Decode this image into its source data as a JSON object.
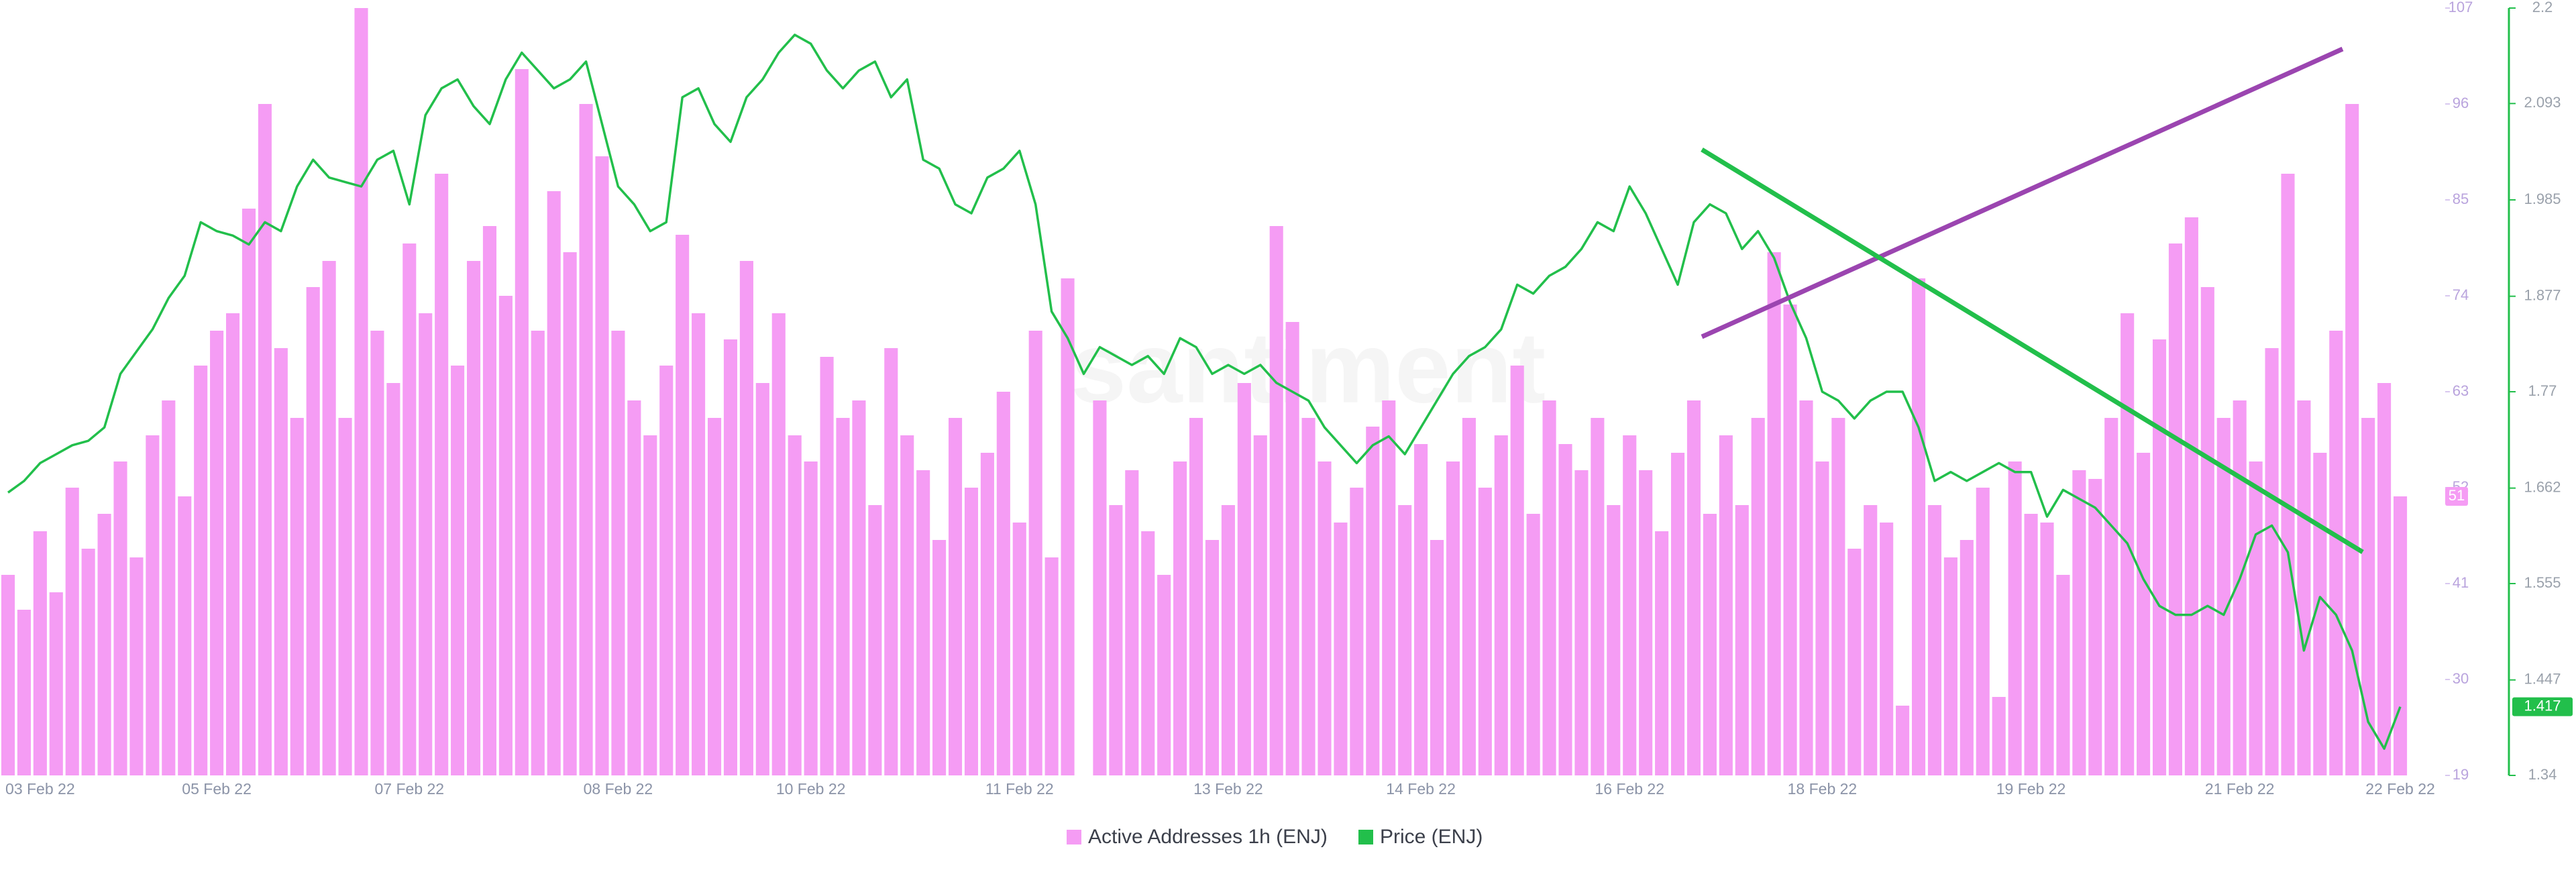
{
  "chart_data": {
    "type": "bar",
    "watermark": "santiment",
    "categories": [
      null,
      null,
      "03 Feb 22",
      null,
      null,
      null,
      null,
      null,
      null,
      null,
      null,
      null,
      null,
      "05 Feb 22",
      null,
      null,
      null,
      null,
      null,
      null,
      null,
      null,
      null,
      null,
      null,
      "07 Feb 22",
      null,
      null,
      null,
      null,
      null,
      null,
      null,
      null,
      null,
      null,
      null,
      null,
      "08 Feb 22",
      null,
      null,
      null,
      null,
      null,
      null,
      null,
      null,
      null,
      null,
      null,
      "10 Feb 22",
      null,
      null,
      null,
      null,
      null,
      null,
      null,
      null,
      null,
      null,
      null,
      null,
      "11 Feb 22",
      null,
      null,
      null,
      null,
      null,
      null,
      null,
      null,
      null,
      null,
      null,
      null,
      "13 Feb 22",
      null,
      null,
      null,
      null,
      null,
      null,
      null,
      null,
      null,
      null,
      null,
      "14 Feb 22",
      null,
      null,
      null,
      null,
      null,
      null,
      null,
      null,
      null,
      null,
      null,
      null,
      "16 Feb 22",
      null,
      null,
      null,
      null,
      null,
      null,
      null,
      null,
      null,
      null,
      null,
      "18 Feb 22",
      null,
      null,
      null,
      null,
      null,
      null,
      null,
      null,
      null,
      null,
      null,
      null,
      "19 Feb 22",
      null,
      null,
      null,
      null,
      null,
      null,
      null,
      null,
      null,
      null,
      null,
      null,
      "21 Feb 22",
      null,
      null,
      null,
      null,
      null,
      null,
      null,
      null,
      null,
      "22 Feb 22"
    ],
    "series": [
      {
        "name": "Active Addresses 1h (ENJ)",
        "type": "bar",
        "axis": "y",
        "color": "#f59cf4",
        "values": [
          42,
          38,
          47,
          40,
          52,
          45,
          49,
          55,
          44,
          58,
          62,
          51,
          66,
          70,
          72,
          84,
          96,
          68,
          60,
          75,
          78,
          60,
          107,
          70,
          64,
          80,
          72,
          88,
          66,
          78,
          82,
          74,
          100,
          70,
          86,
          79,
          96,
          90,
          70,
          62,
          58,
          66,
          81,
          72,
          60,
          69,
          78,
          64,
          72,
          58,
          55,
          67,
          60,
          62,
          50,
          68,
          58,
          54,
          46,
          60,
          52,
          56,
          63,
          48,
          70,
          44,
          76,
          19,
          62,
          50,
          54,
          47,
          42,
          55,
          60,
          46,
          50,
          64,
          58,
          82,
          71,
          60,
          55,
          48,
          52,
          59,
          62,
          50,
          57,
          46,
          55,
          60,
          52,
          58,
          66,
          49,
          62,
          57,
          54,
          60,
          50,
          58,
          54,
          47,
          56,
          62,
          49,
          58,
          50,
          60,
          79,
          73,
          62,
          55,
          60,
          45,
          50,
          48,
          27,
          76,
          50,
          44,
          46,
          52,
          28,
          55,
          49,
          48,
          42,
          54,
          53,
          60,
          72,
          56,
          69,
          80,
          83,
          75,
          60,
          62,
          55,
          68,
          88,
          62,
          56,
          70,
          96,
          60,
          64,
          51
        ]
      },
      {
        "name": "Price (ENJ)",
        "type": "line",
        "axis": "y2",
        "color": "#22bf4b",
        "values": [
          1.657,
          1.67,
          1.69,
          1.7,
          1.71,
          1.715,
          1.73,
          1.79,
          1.815,
          1.84,
          1.875,
          1.9,
          1.96,
          1.95,
          1.945,
          1.935,
          1.96,
          1.95,
          2.0,
          2.03,
          2.01,
          2.005,
          2.0,
          2.03,
          2.04,
          1.98,
          2.08,
          2.11,
          2.12,
          2.09,
          2.07,
          2.12,
          2.15,
          2.13,
          2.11,
          2.12,
          2.14,
          2.07,
          2.0,
          1.98,
          1.95,
          1.96,
          2.1,
          2.11,
          2.07,
          2.05,
          2.1,
          2.12,
          2.15,
          2.17,
          2.16,
          2.13,
          2.11,
          2.13,
          2.14,
          2.1,
          2.12,
          2.03,
          2.02,
          1.98,
          1.97,
          2.01,
          2.02,
          2.04,
          1.98,
          1.86,
          1.83,
          1.79,
          1.82,
          1.81,
          1.8,
          1.81,
          1.79,
          1.83,
          1.82,
          1.79,
          1.8,
          1.79,
          1.8,
          1.78,
          1.77,
          1.76,
          1.73,
          1.71,
          1.69,
          1.71,
          1.72,
          1.7,
          1.73,
          1.76,
          1.79,
          1.81,
          1.82,
          1.84,
          1.89,
          1.88,
          1.9,
          1.91,
          1.93,
          1.96,
          1.95,
          2.0,
          1.97,
          1.93,
          1.89,
          1.96,
          1.98,
          1.97,
          1.93,
          1.95,
          1.92,
          1.87,
          1.83,
          1.77,
          1.76,
          1.74,
          1.76,
          1.77,
          1.77,
          1.73,
          1.67,
          1.68,
          1.67,
          1.68,
          1.69,
          1.68,
          1.68,
          1.63,
          1.66,
          1.65,
          1.64,
          1.62,
          1.6,
          1.56,
          1.53,
          1.52,
          1.52,
          1.53,
          1.52,
          1.56,
          1.61,
          1.62,
          1.59,
          1.48,
          1.54,
          1.52,
          1.48,
          1.4,
          1.37,
          1.417
        ]
      }
    ],
    "ylim": [
      19,
      107
    ],
    "yticks": [
      19,
      30,
      41,
      52,
      63,
      74,
      85,
      96,
      107
    ],
    "y2lim": [
      1.34,
      2.2
    ],
    "y2ticks": [
      1.34,
      1.447,
      1.555,
      1.662,
      1.77,
      1.877,
      1.985,
      2.093,
      2.2
    ],
    "legend": "bottom"
  }
}
